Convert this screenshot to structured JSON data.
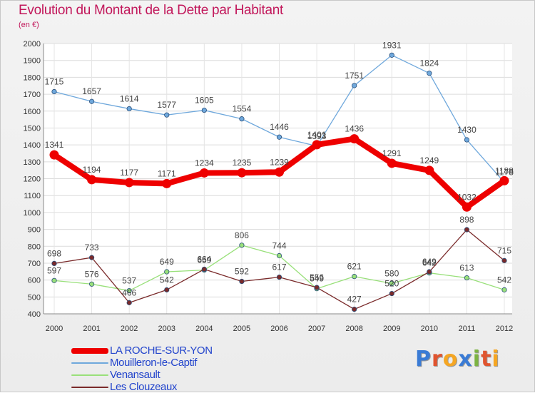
{
  "header": {
    "title": "Evolution du Montant de la Dette par Habitant",
    "subtitle": "(en €)"
  },
  "logo": {
    "text": "Proxiti",
    "letters": [
      "P",
      "r",
      "o",
      "x",
      "i",
      "t",
      "i"
    ],
    "colors": [
      "#3a7bd5",
      "#e0542f",
      "#f5a623",
      "#3a7bd5",
      "#7cb342",
      "#e0542f",
      "#f5a623"
    ]
  },
  "chart_data": {
    "type": "line",
    "title": "Evolution du Montant de la Dette par Habitant",
    "ylabel": "(en €)",
    "xlabel": "",
    "ylim": [
      400,
      2000
    ],
    "yticks": [
      400,
      500,
      600,
      700,
      800,
      900,
      1000,
      1100,
      1200,
      1300,
      1400,
      1500,
      1600,
      1700,
      1800,
      1900,
      2000
    ],
    "categories": [
      "2000",
      "2001",
      "2002",
      "2003",
      "2004",
      "2005",
      "2006",
      "2007",
      "2008",
      "2009",
      "2010",
      "2011",
      "2012"
    ],
    "grid": true,
    "legend_position": "bottom-left",
    "series": [
      {
        "name": "LA ROCHE-SUR-YON",
        "color": "#ee0000",
        "highlight": true,
        "values": [
          1341,
          1194,
          1177,
          1171,
          1234,
          1235,
          1239,
          1401,
          1436,
          1291,
          1249,
          1032,
          1188
        ]
      },
      {
        "name": "Mouilleron-le-Captif",
        "color": "#6fa8dc",
        "highlight": false,
        "values": [
          1715,
          1657,
          1614,
          1577,
          1605,
          1554,
          1446,
          1393,
          1751,
          1931,
          1824,
          1430,
          1178
        ]
      },
      {
        "name": "Venansault",
        "color": "#99e07a",
        "highlight": false,
        "values": [
          597,
          576,
          537,
          649,
          659,
          806,
          744,
          549,
          621,
          580,
          642,
          613,
          542
        ]
      },
      {
        "name": "Les Clouzeaux",
        "color": "#7a2a2a",
        "highlight": false,
        "values": [
          698,
          733,
          466,
          542,
          664,
          592,
          617,
          556,
          427,
          520,
          649,
          898,
          715
        ]
      }
    ]
  }
}
